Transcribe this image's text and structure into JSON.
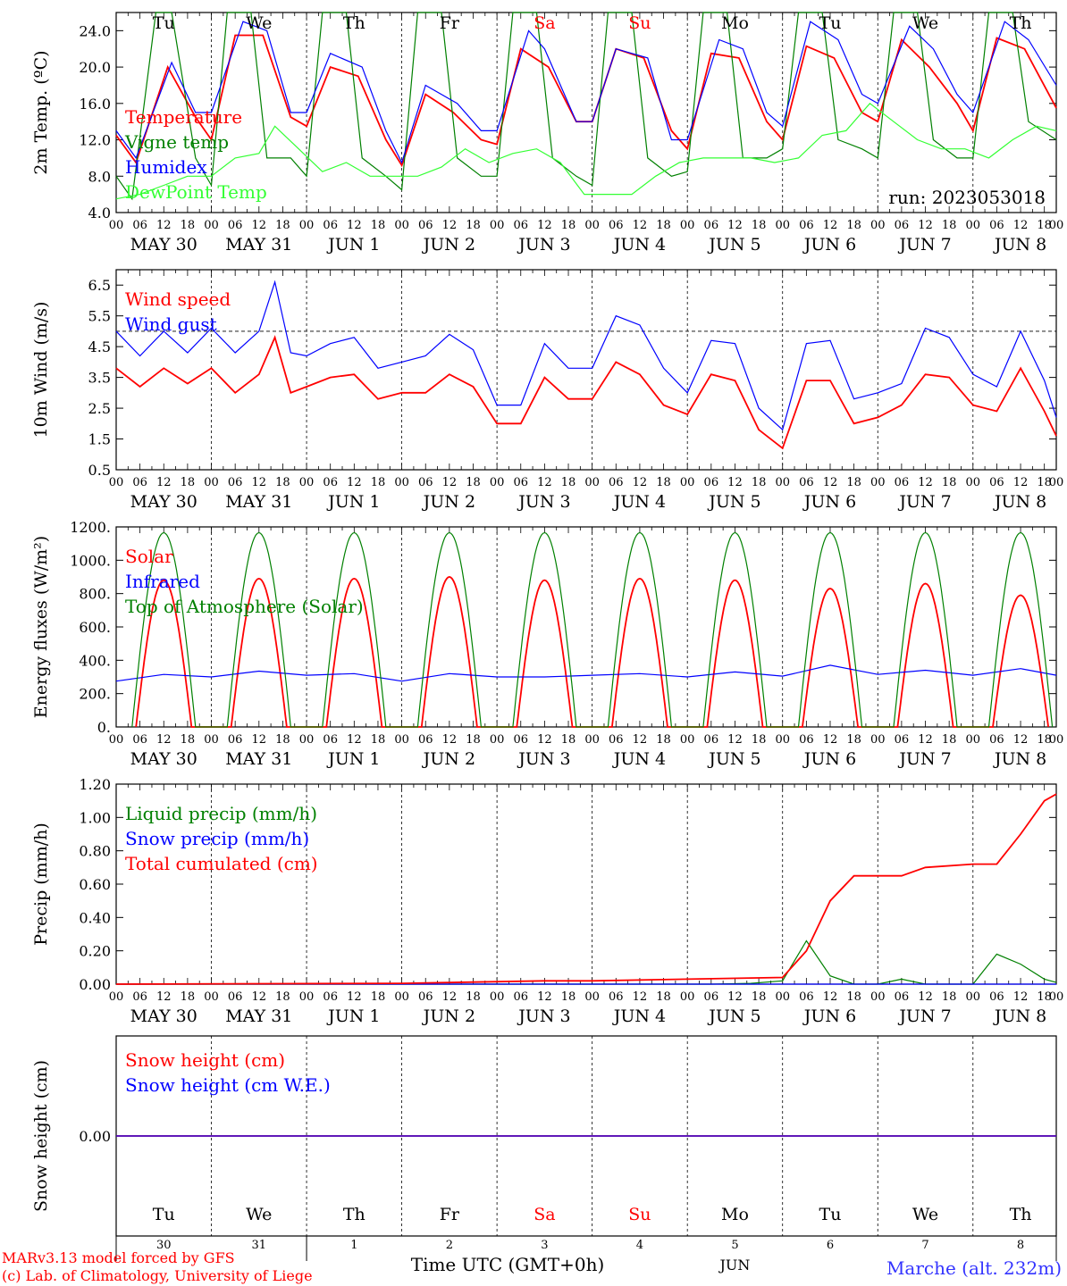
{
  "chart_data": [
    {
      "type": "line",
      "ylabel": "2m Temp. (ºC)",
      "yticks": [
        "4.0",
        "8.0",
        "12.0",
        "16.0",
        "20.0",
        "24.0"
      ],
      "ylim": [
        4,
        26
      ],
      "run_label": "run: 2023053018",
      "series": [
        {
          "name": "Temperature",
          "color": "#ff0000",
          "x": [
            0,
            5,
            13,
            20,
            24,
            30,
            37,
            44,
            48,
            54,
            61,
            68,
            72,
            78,
            85,
            92,
            96,
            102,
            109,
            116,
            120,
            126,
            133,
            140,
            144,
            150,
            157,
            164,
            168,
            174,
            181,
            188,
            192,
            198,
            205,
            212,
            216,
            222,
            229,
            237
          ],
          "y": [
            12.5,
            9.5,
            20,
            14.5,
            12,
            23.5,
            23.5,
            14.5,
            13.5,
            20,
            19,
            12,
            9.2,
            17,
            15,
            12,
            11.5,
            22,
            20,
            14,
            14,
            22,
            21,
            13,
            11,
            21.5,
            21,
            14,
            12,
            22.3,
            21,
            15,
            14,
            23,
            20,
            16,
            13,
            23.2,
            22,
            15.5
          ]
        },
        {
          "name": "Vigne temp",
          "color": "#008000",
          "x": [
            0,
            4,
            10,
            14,
            20,
            24,
            28,
            34,
            38,
            44,
            48,
            52,
            58,
            62,
            68,
            72,
            76,
            82,
            86,
            92,
            96,
            100,
            106,
            110,
            116,
            120,
            124,
            130,
            134,
            140,
            144,
            148,
            154,
            158,
            164,
            168,
            172,
            178,
            182,
            188,
            192,
            196,
            202,
            206,
            212,
            216,
            220,
            226,
            230,
            237
          ],
          "y": [
            8,
            5.5,
            26,
            26,
            10,
            7,
            26,
            26,
            10,
            10,
            8,
            26,
            26,
            10,
            8,
            6.5,
            26,
            26,
            10,
            8,
            8,
            26,
            26,
            10,
            8,
            7,
            26,
            26,
            10,
            8,
            8.5,
            26,
            26,
            10,
            10,
            11,
            26,
            26,
            12,
            11,
            10,
            26,
            26,
            12,
            10,
            10,
            26,
            26,
            14,
            12
          ]
        },
        {
          "name": "Humidex",
          "color": "#0000ff",
          "x": [
            0,
            5,
            14,
            20,
            24,
            32,
            38,
            44,
            48,
            54,
            62,
            68,
            72,
            78,
            86,
            92,
            96,
            104,
            108,
            116,
            120,
            126,
            134,
            140,
            144,
            152,
            158,
            164,
            168,
            175,
            182,
            188,
            192,
            200,
            206,
            212,
            216,
            224,
            230,
            237
          ],
          "y": [
            13,
            10,
            20.5,
            15,
            15,
            25,
            24,
            15,
            15,
            21.5,
            20,
            13,
            9.5,
            18,
            16,
            13,
            13,
            24,
            22,
            14,
            14,
            22,
            21,
            12,
            12,
            23,
            22,
            15,
            13.5,
            25,
            23,
            17,
            16,
            24.5,
            22,
            17,
            15,
            25,
            23,
            18
          ]
        },
        {
          "name": "DewPoint Temp",
          "color": "#33ff33",
          "x": [
            0,
            6,
            12,
            18,
            24,
            30,
            36,
            40,
            46,
            52,
            58,
            64,
            70,
            76,
            82,
            88,
            94,
            100,
            106,
            112,
            118,
            124,
            130,
            136,
            142,
            148,
            154,
            160,
            166,
            172,
            178,
            184,
            190,
            196,
            202,
            208,
            214,
            220,
            226,
            232,
            237
          ],
          "y": [
            5.5,
            6,
            7,
            8,
            8,
            10,
            10.5,
            13.5,
            11,
            8.5,
            9.5,
            8,
            8,
            8,
            9,
            11,
            9.5,
            10.5,
            11,
            9.5,
            6,
            6,
            6,
            8,
            9.5,
            10,
            10,
            10,
            9.5,
            10,
            12.5,
            13,
            16,
            14,
            12,
            11,
            11,
            10,
            12,
            13.5,
            13
          ]
        }
      ]
    },
    {
      "type": "line",
      "ylabel": "10m Wind (m/s)",
      "yticks": [
        "0.5",
        "1.5",
        "2.5",
        "3.5",
        "4.5",
        "5.5",
        "6.5"
      ],
      "ylim": [
        0.5,
        7.0
      ],
      "dashed_ref": 5.0,
      "series": [
        {
          "name": "Wind speed",
          "color": "#ff0000",
          "x": [
            0,
            6,
            12,
            18,
            24,
            30,
            36,
            40,
            44,
            48,
            54,
            60,
            66,
            72,
            78,
            84,
            90,
            96,
            102,
            108,
            114,
            120,
            126,
            132,
            138,
            144,
            150,
            156,
            162,
            168,
            174,
            180,
            186,
            192,
            198,
            204,
            210,
            216,
            222,
            228,
            234,
            237
          ],
          "y": [
            3.8,
            3.2,
            3.8,
            3.3,
            3.8,
            3.0,
            3.6,
            4.8,
            3.0,
            3.2,
            3.5,
            3.6,
            2.8,
            3.0,
            3.0,
            3.6,
            3.2,
            2.0,
            2.0,
            3.5,
            2.8,
            2.8,
            4.0,
            3.6,
            2.6,
            2.3,
            3.6,
            3.4,
            1.8,
            1.2,
            3.4,
            3.4,
            2.0,
            2.2,
            2.6,
            3.6,
            3.5,
            2.6,
            2.4,
            3.8,
            2.4,
            1.6
          ]
        },
        {
          "name": "Wind gust",
          "color": "#0000ff",
          "x": [
            0,
            6,
            12,
            18,
            24,
            30,
            36,
            40,
            44,
            48,
            54,
            60,
            66,
            72,
            78,
            84,
            90,
            96,
            102,
            108,
            114,
            120,
            126,
            132,
            138,
            144,
            150,
            156,
            162,
            168,
            174,
            180,
            186,
            192,
            198,
            204,
            210,
            216,
            222,
            228,
            234,
            237
          ],
          "y": [
            5.0,
            4.2,
            5.0,
            4.3,
            5.1,
            4.3,
            5.0,
            6.6,
            4.3,
            4.2,
            4.6,
            4.8,
            3.8,
            4.0,
            4.2,
            4.9,
            4.4,
            2.6,
            2.6,
            4.6,
            3.8,
            3.8,
            5.5,
            5.2,
            3.8,
            3.0,
            4.7,
            4.6,
            2.5,
            1.8,
            4.6,
            4.7,
            2.8,
            3.0,
            3.3,
            5.1,
            4.8,
            3.6,
            3.2,
            5.0,
            3.4,
            2.2
          ]
        }
      ]
    },
    {
      "type": "line",
      "ylabel": "Energy fluxes (W/m²)",
      "yticks": [
        "0.",
        "200.",
        "400.",
        "600.",
        "800.",
        "1000.",
        "1200."
      ],
      "ylim": [
        0,
        1200
      ],
      "series": [
        {
          "name": "Solar",
          "color": "#ff0000",
          "day_peaks": [
            880,
            890,
            890,
            900,
            880,
            890,
            880,
            830,
            860,
            790
          ]
        },
        {
          "name": "Infrared",
          "color": "#0000ff",
          "x": [
            0,
            12,
            24,
            36,
            48,
            60,
            72,
            84,
            96,
            108,
            120,
            132,
            144,
            156,
            168,
            180,
            192,
            204,
            216,
            228,
            237
          ],
          "y": [
            275,
            315,
            300,
            335,
            310,
            320,
            275,
            320,
            300,
            300,
            310,
            320,
            300,
            330,
            305,
            370,
            315,
            340,
            310,
            350,
            310
          ]
        },
        {
          "name": "Top of Atmosphere (Solar)",
          "color": "#008000",
          "day_peaks": [
            1165,
            1165,
            1165,
            1165,
            1165,
            1165,
            1165,
            1165,
            1165,
            1165
          ]
        }
      ]
    },
    {
      "type": "line",
      "ylabel": "Precip (mm/h)",
      "yticks": [
        "0.00",
        "0.20",
        "0.40",
        "0.60",
        "0.80",
        "1.00",
        "1.20"
      ],
      "ylim": [
        0,
        1.2
      ],
      "series": [
        {
          "name": "Liquid precip (mm/h)",
          "color": "#008000",
          "x": [
            0,
            150,
            160,
            168,
            174,
            180,
            186,
            192,
            198,
            204,
            210,
            216,
            222,
            228,
            234,
            237
          ],
          "y": [
            0,
            0,
            0.005,
            0.02,
            0.26,
            0.05,
            0,
            0,
            0.03,
            0,
            0,
            0,
            0.18,
            0.12,
            0.03,
            0.01
          ]
        },
        {
          "name": "Snow precip (mm/h)",
          "color": "#0000ff",
          "x": [
            0,
            237
          ],
          "y": [
            0,
            0
          ]
        },
        {
          "name": "Total cumulated (cm)",
          "color": "#ff0000",
          "x": [
            0,
            72,
            108,
            120,
            144,
            168,
            174,
            180,
            186,
            198,
            204,
            216,
            222,
            228,
            234,
            237
          ],
          "y": [
            0,
            0.005,
            0.02,
            0.02,
            0.03,
            0.04,
            0.2,
            0.5,
            0.65,
            0.65,
            0.7,
            0.72,
            0.72,
            0.9,
            1.1,
            1.14
          ]
        }
      ]
    },
    {
      "type": "line",
      "ylabel": "Snow height (cm)",
      "yticks": [
        "0.00"
      ],
      "ylim": [
        -1,
        1
      ],
      "series": [
        {
          "name": "Snow height (cm)",
          "color": "#ff0000",
          "x": [
            0,
            237
          ],
          "y": [
            0,
            0
          ]
        },
        {
          "name": "Snow height (cm W.E.)",
          "color": "#0000ff",
          "x": [
            0,
            237
          ],
          "y": [
            0,
            0
          ]
        }
      ]
    }
  ],
  "axis": {
    "hour_labels": [
      "00",
      "06",
      "12",
      "18"
    ],
    "hour_end": "00",
    "dates": [
      "MAY 30",
      "MAY 31",
      "JUN  1",
      "JUN  2",
      "JUN  3",
      "JUN  4",
      "JUN  5",
      "JUN  6",
      "JUN  7",
      "JUN  8"
    ],
    "weekdays": [
      "Tu",
      "We",
      "Th",
      "Fr",
      "Sa",
      "Su",
      "Mo",
      "Tu",
      "We",
      "Th"
    ],
    "weekend_index": [
      4,
      5
    ],
    "day_numbers": [
      "30",
      "31",
      "1",
      "2",
      "3",
      "4",
      "5",
      "6",
      "7",
      "8"
    ],
    "month_label": "JUN",
    "time_label": "Time UTC (GMT+0h)"
  },
  "footer": {
    "model_line": "MARv3.13 model forced by GFS",
    "lab_line": "(c) Lab. of Climatology, University of Liege",
    "station": "Marche (alt. 232m)"
  }
}
